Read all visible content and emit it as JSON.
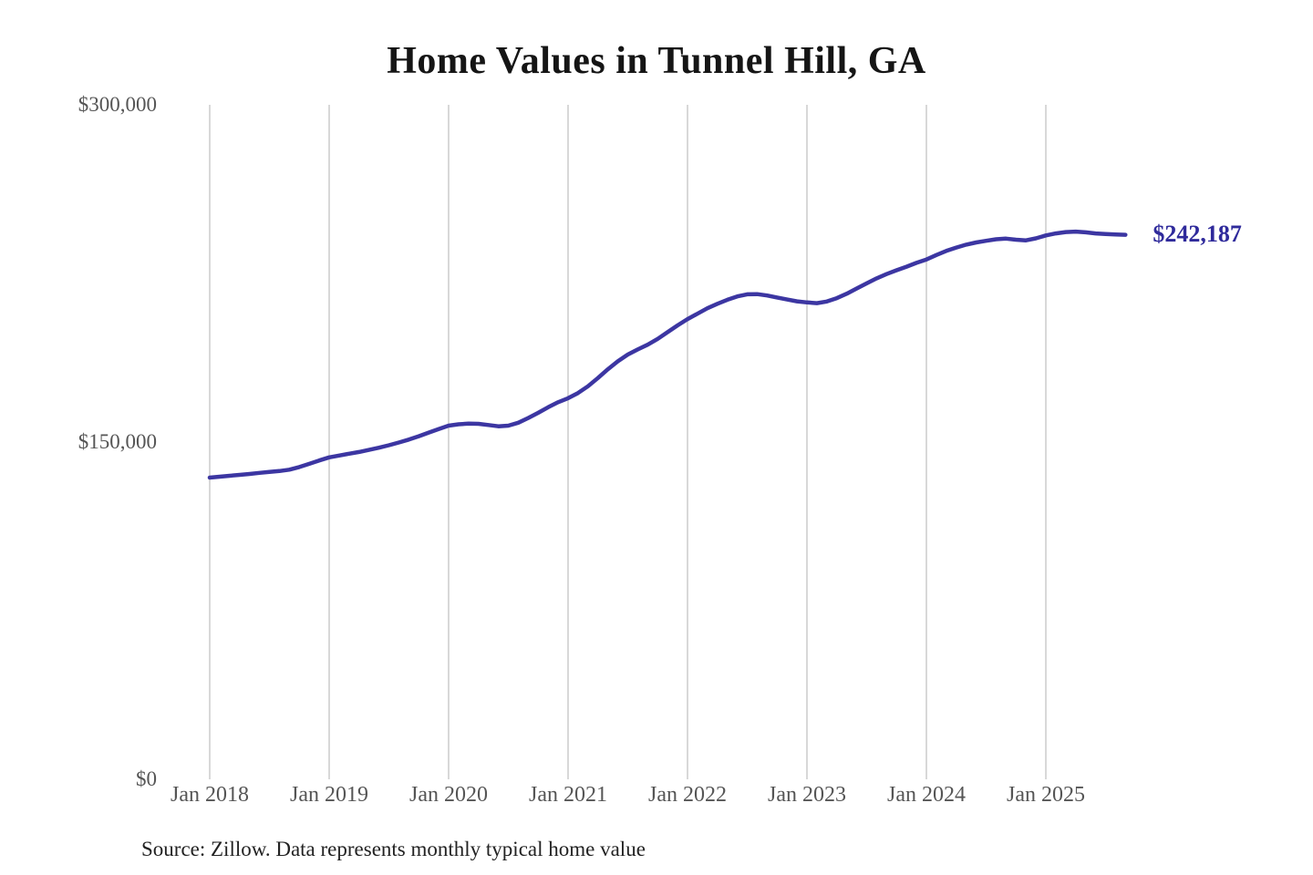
{
  "header": {
    "title": "Home Values in Tunnel Hill, GA"
  },
  "footer": {
    "source": "Source: Zillow. Data represents monthly typical home value"
  },
  "chart_data": {
    "type": "line",
    "title": "Home Values in Tunnel Hill, GA",
    "currency": "USD",
    "xlabel": "",
    "ylabel": "",
    "ylim": [
      0,
      300000
    ],
    "grid": "vertical",
    "legend": "none",
    "end_label": "$242,187",
    "final_value": 242187,
    "x": [
      "2018-01",
      "2018-02",
      "2018-03",
      "2018-04",
      "2018-05",
      "2018-06",
      "2018-07",
      "2018-08",
      "2018-09",
      "2018-10",
      "2018-11",
      "2018-12",
      "2019-01",
      "2019-02",
      "2019-03",
      "2019-04",
      "2019-05",
      "2019-06",
      "2019-07",
      "2019-08",
      "2019-09",
      "2019-10",
      "2019-11",
      "2019-12",
      "2020-01",
      "2020-02",
      "2020-03",
      "2020-04",
      "2020-05",
      "2020-06",
      "2020-07",
      "2020-08",
      "2020-09",
      "2020-10",
      "2020-11",
      "2020-12",
      "2021-01",
      "2021-02",
      "2021-03",
      "2021-04",
      "2021-05",
      "2021-06",
      "2021-07",
      "2021-08",
      "2021-09",
      "2021-10",
      "2021-11",
      "2021-12",
      "2022-01",
      "2022-02",
      "2022-03",
      "2022-04",
      "2022-05",
      "2022-06",
      "2022-07",
      "2022-08",
      "2022-09",
      "2022-10",
      "2022-11",
      "2022-12",
      "2023-01",
      "2023-02",
      "2023-03",
      "2023-04",
      "2023-05",
      "2023-06",
      "2023-07",
      "2023-08",
      "2023-09",
      "2023-10",
      "2023-11",
      "2023-12",
      "2024-01",
      "2024-02",
      "2024-03",
      "2024-04",
      "2024-05",
      "2024-06",
      "2024-07",
      "2024-08",
      "2024-09",
      "2024-10",
      "2024-11",
      "2024-12",
      "2025-01",
      "2025-02",
      "2025-03",
      "2025-04",
      "2025-05",
      "2025-06",
      "2025-07",
      "2025-08",
      "2025-09"
    ],
    "values": [
      134200,
      134600,
      135000,
      135400,
      135800,
      136300,
      136700,
      137100,
      137700,
      138900,
      140300,
      141800,
      143200,
      144000,
      144800,
      145600,
      146500,
      147500,
      148600,
      149800,
      151100,
      152600,
      154200,
      155800,
      157300,
      157900,
      158200,
      158100,
      157600,
      157000,
      157300,
      158600,
      160700,
      163000,
      165500,
      167700,
      169500,
      171800,
      174800,
      178500,
      182400,
      185900,
      188900,
      191200,
      193300,
      195900,
      198900,
      201900,
      204700,
      207100,
      209500,
      211500,
      213300,
      214800,
      215700,
      215800,
      215200,
      214300,
      213400,
      212600,
      212100,
      211800,
      212500,
      214000,
      216000,
      218300,
      220600,
      222800,
      224700,
      226400,
      228000,
      229700,
      231200,
      233200,
      235000,
      236500,
      237800,
      238800,
      239500,
      240200,
      240500,
      240000,
      239700,
      240600,
      241900,
      242800,
      243400,
      243600,
      243300,
      242800,
      242500,
      242300,
      242187
    ],
    "x_ticks": [
      {
        "month_index": 0,
        "label": "Jan 2018"
      },
      {
        "month_index": 12,
        "label": "Jan 2019"
      },
      {
        "month_index": 24,
        "label": "Jan 2020"
      },
      {
        "month_index": 36,
        "label": "Jan 2021"
      },
      {
        "month_index": 48,
        "label": "Jan 2022"
      },
      {
        "month_index": 60,
        "label": "Jan 2023"
      },
      {
        "month_index": 72,
        "label": "Jan 2024"
      },
      {
        "month_index": 84,
        "label": "Jan 2025"
      }
    ],
    "y_ticks": [
      {
        "value": 0,
        "label": "$0"
      },
      {
        "value": 150000,
        "label": "$150,000"
      },
      {
        "value": 300000,
        "label": "$300,000"
      }
    ],
    "colors": {
      "line": "#3c36a2",
      "end_label": "#2f2a9b",
      "grid": "#cccccc",
      "axis_text": "#555555",
      "title_text": "#151515",
      "source_text": "#222222"
    }
  }
}
